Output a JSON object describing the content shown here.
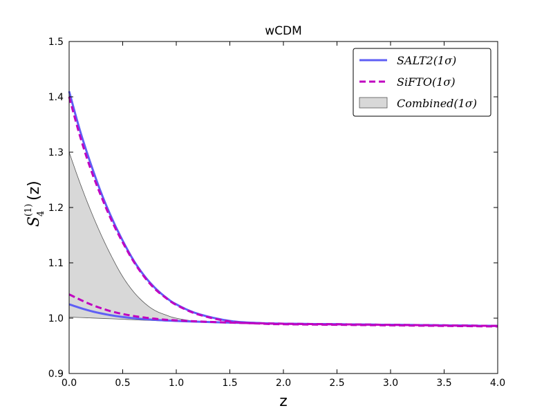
{
  "chart_data": {
    "type": "line",
    "title": "wCDM",
    "xlabel": "z",
    "ylabel_main": "S",
    "ylabel_sub": "4",
    "ylabel_sup": "(1)",
    "ylabel_tail": "(z)",
    "xlim": [
      0.0,
      4.0
    ],
    "ylim": [
      0.9,
      1.5
    ],
    "xticks": [
      "0.0",
      "0.5",
      "1.0",
      "1.5",
      "2.0",
      "2.5",
      "3.0",
      "3.5",
      "4.0"
    ],
    "yticks": [
      "0.9",
      "1.0",
      "1.1",
      "1.2",
      "1.3",
      "1.4",
      "1.5"
    ],
    "grid": false,
    "legend_position": "top-right",
    "legend": [
      {
        "label": "SALT2(1σ)",
        "style": "solid",
        "color": "#5f5ff5"
      },
      {
        "label": "SiFTO(1σ)",
        "style": "dashed",
        "color": "#c000c0"
      },
      {
        "label": "Combined(1σ)",
        "style": "fill",
        "color": "#d8d8d8"
      }
    ],
    "series": [
      {
        "name": "SALT2(1σ) upper",
        "color": "#5f5ff5",
        "style": "solid",
        "x": [
          0.0,
          0.1,
          0.2,
          0.3,
          0.4,
          0.5,
          0.6,
          0.7,
          0.8,
          0.9,
          1.0,
          1.2,
          1.5,
          1.8,
          2.0,
          2.5,
          3.0,
          3.5,
          4.0
        ],
        "y": [
          1.41,
          1.34,
          1.28,
          1.226,
          1.18,
          1.14,
          1.105,
          1.077,
          1.055,
          1.038,
          1.025,
          1.008,
          0.995,
          0.991,
          0.99,
          0.989,
          0.988,
          0.987,
          0.986
        ]
      },
      {
        "name": "SALT2(1σ) lower",
        "color": "#5f5ff5",
        "style": "solid",
        "x": [
          0.0,
          0.2,
          0.4,
          0.6,
          0.8,
          1.0,
          1.5,
          2.0,
          2.5,
          3.0,
          3.5,
          4.0
        ],
        "y": [
          1.025,
          1.013,
          1.005,
          1.0,
          0.997,
          0.995,
          0.992,
          0.99,
          0.989,
          0.988,
          0.987,
          0.986
        ]
      },
      {
        "name": "SiFTO(1σ) upper",
        "color": "#c000c0",
        "style": "dashed",
        "x": [
          0.0,
          0.1,
          0.2,
          0.3,
          0.4,
          0.5,
          0.6,
          0.7,
          0.8,
          0.9,
          1.0,
          1.2,
          1.5,
          1.8,
          2.0,
          2.5,
          3.0,
          3.5,
          4.0
        ],
        "y": [
          1.4,
          1.33,
          1.27,
          1.22,
          1.175,
          1.137,
          1.103,
          1.075,
          1.053,
          1.037,
          1.024,
          1.007,
          0.994,
          0.99,
          0.989,
          0.988,
          0.987,
          0.986,
          0.985
        ]
      },
      {
        "name": "SiFTO(1σ) lower",
        "color": "#c000c0",
        "style": "dashed",
        "x": [
          0.0,
          0.2,
          0.4,
          0.6,
          0.8,
          1.0,
          1.5,
          2.0,
          2.5,
          3.0,
          3.5,
          4.0
        ],
        "y": [
          1.043,
          1.025,
          1.012,
          1.004,
          0.999,
          0.996,
          0.992,
          0.99,
          0.989,
          0.988,
          0.987,
          0.986
        ]
      },
      {
        "name": "Combined(1σ) upper",
        "color": "#555555",
        "style": "band-edge",
        "x": [
          0.0,
          0.1,
          0.2,
          0.3,
          0.4,
          0.5,
          0.6,
          0.7,
          0.8,
          0.9,
          1.0,
          1.2,
          1.5,
          2.0,
          2.5,
          3.0,
          3.5,
          4.0
        ],
        "y": [
          1.3,
          1.245,
          1.195,
          1.15,
          1.11,
          1.075,
          1.048,
          1.028,
          1.014,
          1.006,
          1.0,
          0.994,
          0.991,
          0.989,
          0.988,
          0.987,
          0.986,
          0.985
        ]
      },
      {
        "name": "Combined(1σ) lower",
        "color": "#555555",
        "style": "band-edge",
        "x": [
          0.0,
          0.5,
          1.0,
          1.5,
          2.0,
          2.5,
          3.0,
          3.5,
          4.0
        ],
        "y": [
          1.002,
          0.998,
          0.994,
          0.991,
          0.989,
          0.988,
          0.987,
          0.986,
          0.985
        ]
      }
    ]
  }
}
